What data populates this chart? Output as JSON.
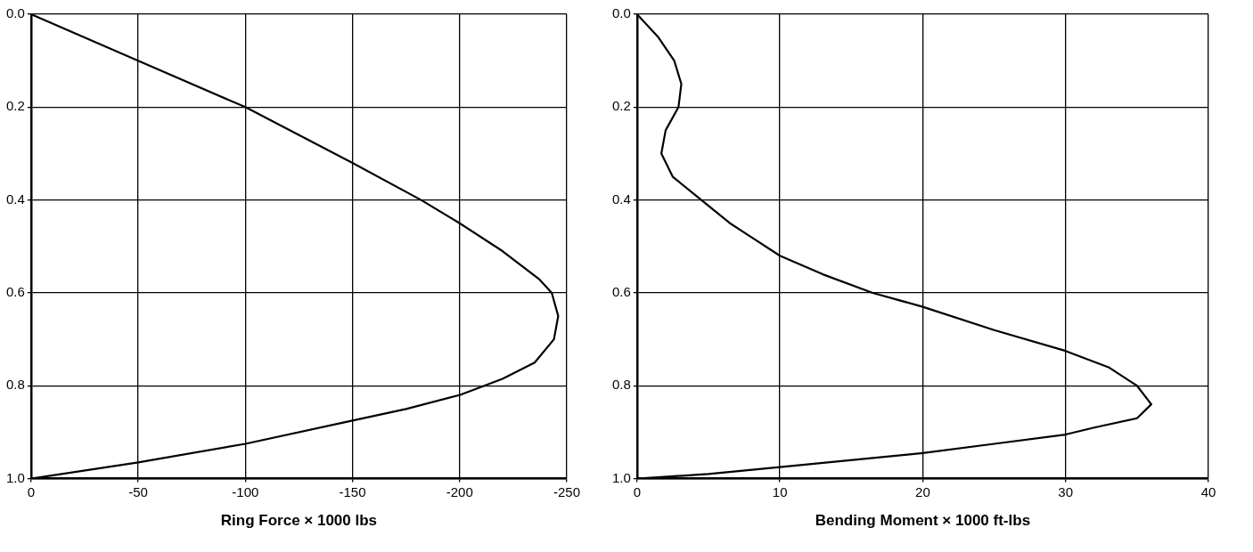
{
  "chart_data": [
    {
      "type": "line",
      "xlabel": "Ring Force × 1000 lbs",
      "xlim": [
        0,
        -250
      ],
      "xticks": [
        0,
        -50,
        -100,
        -150,
        -200,
        -250
      ],
      "ylim": [
        1.0,
        0.0
      ],
      "yticks": [
        {
          "value": 0.0,
          "label": "0.0"
        },
        {
          "value": 0.2,
          "label": "0.2"
        },
        {
          "value": 0.4,
          "label": "0.4"
        },
        {
          "value": 0.6,
          "label": "0.6"
        },
        {
          "value": 0.8,
          "label": "0.8"
        },
        {
          "value": 1.0,
          "label": "1.0"
        }
      ],
      "grid": true,
      "legend": false,
      "marker": "none",
      "line_style": "solid",
      "series": [
        {
          "color": "#000000",
          "x": [
            0,
            -50,
            -100,
            -150,
            -182,
            -200,
            -220,
            -237,
            -243,
            -246,
            -244,
            -235,
            -220,
            -200,
            -175,
            -150,
            -100,
            -50,
            0
          ],
          "values": [
            0.0,
            0.1,
            0.2,
            0.32,
            0.4,
            0.45,
            0.51,
            0.57,
            0.6,
            0.65,
            0.7,
            0.75,
            0.785,
            0.82,
            0.85,
            0.875,
            0.925,
            0.965,
            1.0
          ]
        }
      ]
    },
    {
      "type": "line",
      "xlabel": "Bending Moment × 1000 ft-lbs",
      "xlim": [
        0,
        40
      ],
      "xticks": [
        0,
        10,
        20,
        30,
        40
      ],
      "ylim": [
        1.0,
        0.0
      ],
      "yticks": [
        {
          "value": 0.0,
          "label": "0.0"
        },
        {
          "value": 0.2,
          "label": "0.2"
        },
        {
          "value": 0.4,
          "label": "0.4"
        },
        {
          "value": 0.6,
          "label": "0.6"
        },
        {
          "value": 0.8,
          "label": "0.8"
        },
        {
          "value": 1.0,
          "label": "1.0"
        }
      ],
      "grid": true,
      "legend": false,
      "marker": "none",
      "line_style": "solid",
      "series": [
        {
          "color": "#000000",
          "x": [
            0,
            1.5,
            2.6,
            3.1,
            2.9,
            2.0,
            1.7,
            2.5,
            4.5,
            6.5,
            8,
            10,
            13,
            16.5,
            20,
            25,
            30,
            33,
            35,
            36,
            35,
            32,
            30,
            25,
            20,
            10,
            5,
            0
          ],
          "values": [
            0.0,
            0.05,
            0.1,
            0.15,
            0.2,
            0.25,
            0.3,
            0.35,
            0.4,
            0.45,
            0.48,
            0.52,
            0.56,
            0.6,
            0.63,
            0.68,
            0.725,
            0.76,
            0.8,
            0.84,
            0.87,
            0.89,
            0.905,
            0.925,
            0.945,
            0.975,
            0.99,
            1.0
          ]
        }
      ]
    }
  ]
}
